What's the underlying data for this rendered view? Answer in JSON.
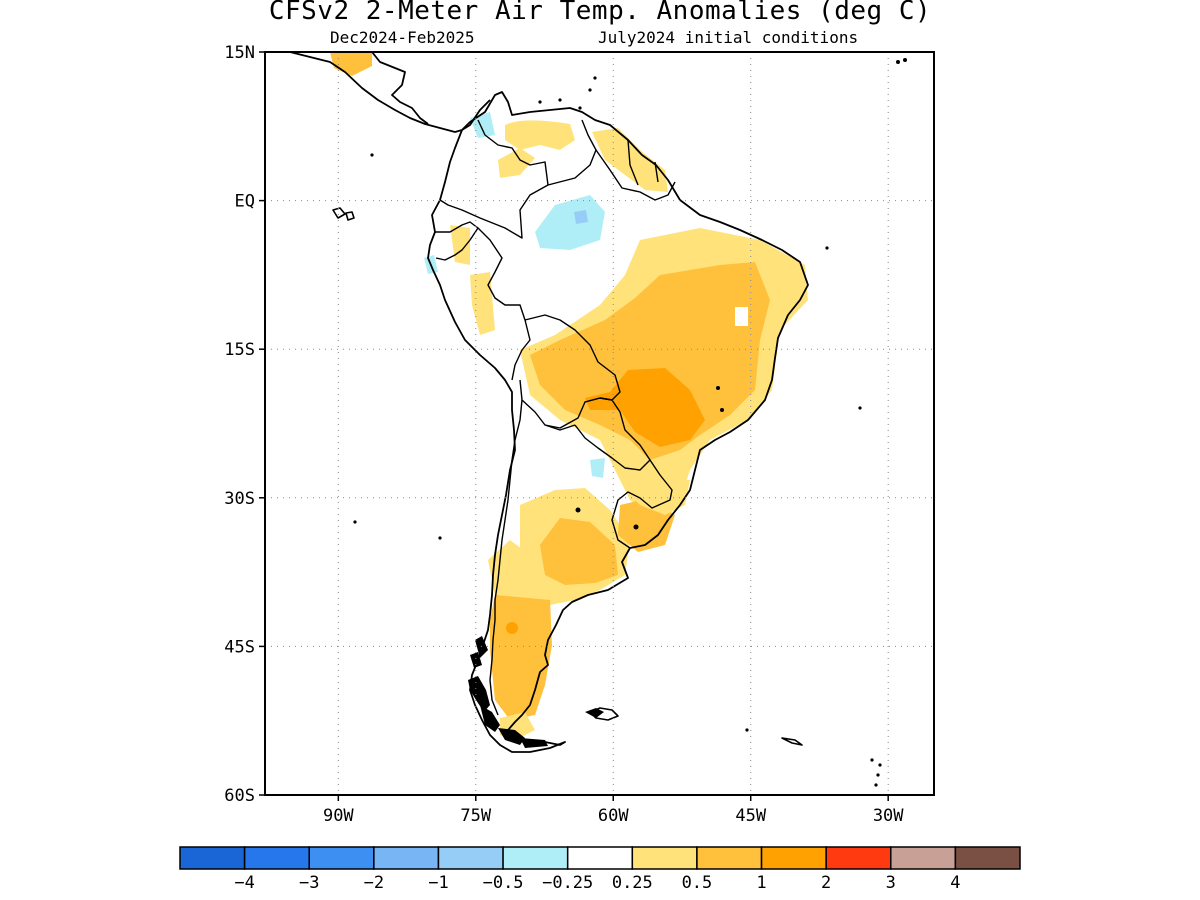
{
  "title": "CFSv2 2-Meter Air Temp. Anomalies (deg C)",
  "subtitle_left": "Dec2024-Feb2025",
  "subtitle_right": "July2024 initial conditions",
  "map": {
    "projection": "lat-lon",
    "lon_range": [
      -98,
      -25
    ],
    "lat_range": [
      -60,
      15
    ],
    "lat_ticks": [
      {
        "value": 15,
        "label": "15N"
      },
      {
        "value": 0,
        "label": "EQ"
      },
      {
        "value": -15,
        "label": "15S"
      },
      {
        "value": -30,
        "label": "30S"
      },
      {
        "value": -45,
        "label": "45S"
      },
      {
        "value": -60,
        "label": "60S"
      }
    ],
    "lon_ticks": [
      {
        "value": -90,
        "label": "90W"
      },
      {
        "value": -75,
        "label": "75W"
      },
      {
        "value": -60,
        "label": "60W"
      },
      {
        "value": -45,
        "label": "45W"
      },
      {
        "value": -30,
        "label": "30W"
      }
    ],
    "grid": "dotted"
  },
  "colorbar": {
    "colors": [
      "#1a66d6",
      "#2677eb",
      "#3d8ff2",
      "#78b5f5",
      "#96cdf7",
      "#b0eef7",
      "#ffffff",
      "#ffe37a",
      "#ffc03c",
      "#ffa100",
      "#ff3a10",
      "#c8a096",
      "#7a5044"
    ],
    "labels": [
      "−4",
      "−3",
      "−2",
      "−1",
      "−0.5",
      "−0.25",
      "0.25",
      "0.5",
      "1",
      "2",
      "3",
      "4"
    ]
  },
  "colors": {
    "light_yellow": "#ffe37a",
    "yellow_orange": "#ffc03c",
    "orange": "#ffa100",
    "light_blue": "#b0eef7",
    "mid_blue": "#96cdf7"
  }
}
